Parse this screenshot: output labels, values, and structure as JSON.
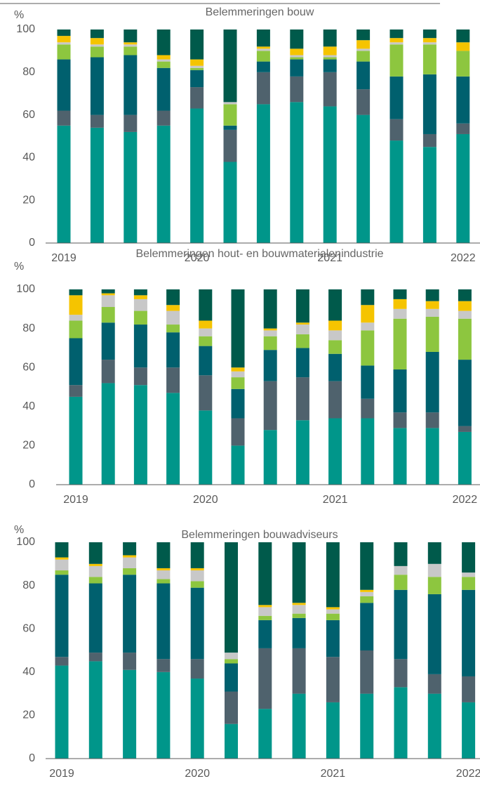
{
  "chart_data": [
    {
      "type": "bar",
      "stacked": true,
      "title": "Belemmeringen bouw",
      "y_label": "%",
      "categories": [
        "2019",
        null,
        null,
        null,
        "2020",
        null,
        null,
        null,
        "2021",
        null,
        null,
        null,
        "2022"
      ],
      "ylim": [
        0,
        100
      ],
      "yticks": [
        0,
        20,
        40,
        60,
        80,
        100
      ],
      "series": [
        {
          "color": "#00968a",
          "values": [
            55,
            54,
            52,
            55,
            63,
            38,
            65,
            66,
            64,
            60,
            48,
            45,
            51
          ]
        },
        {
          "color": "#4f626d",
          "values": [
            7,
            6,
            8,
            7,
            10,
            15,
            15,
            12,
            16,
            12,
            10,
            6,
            5
          ]
        },
        {
          "color": "#00606e",
          "values": [
            24,
            27,
            28,
            20,
            8,
            2,
            5,
            8,
            6,
            13,
            20,
            28,
            22
          ]
        },
        {
          "color": "#8dc63f",
          "values": [
            7,
            5,
            4,
            3,
            1,
            10,
            5,
            1,
            1,
            5,
            15,
            14,
            12
          ]
        },
        {
          "color": "#c8c8c8",
          "values": [
            1,
            1,
            1,
            1,
            1,
            1,
            1,
            1,
            1,
            1,
            1,
            1,
            0
          ]
        },
        {
          "color": "#f5c400",
          "values": [
            3,
            3,
            1,
            2,
            3,
            0,
            1,
            3,
            4,
            4,
            2,
            2,
            4
          ]
        },
        {
          "color": "#005a4b",
          "values": [
            3,
            4,
            6,
            12,
            14,
            34,
            8,
            9,
            8,
            5,
            4,
            4,
            6
          ]
        }
      ]
    },
    {
      "type": "bar",
      "stacked": true,
      "title": "Belemmeringen hout- en bouwmaterialenindustrie",
      "y_label": "%",
      "categories": [
        "2019",
        null,
        null,
        null,
        "2020",
        null,
        null,
        null,
        "2021",
        null,
        null,
        null,
        "2022"
      ],
      "ylim": [
        0,
        100
      ],
      "yticks": [
        0,
        20,
        40,
        60,
        80,
        100
      ],
      "series": [
        {
          "color": "#00968a",
          "values": [
            45,
            52,
            51,
            47,
            38,
            20,
            28,
            33,
            34,
            34,
            29,
            29,
            27
          ]
        },
        {
          "color": "#4f626d",
          "values": [
            6,
            12,
            9,
            13,
            18,
            14,
            25,
            22,
            19,
            10,
            8,
            8,
            3
          ]
        },
        {
          "color": "#00606e",
          "values": [
            24,
            19,
            22,
            18,
            15,
            15,
            16,
            15,
            14,
            17,
            22,
            31,
            34
          ]
        },
        {
          "color": "#8dc63f",
          "values": [
            9,
            8,
            7,
            4,
            5,
            6,
            7,
            7,
            7,
            18,
            26,
            18,
            21
          ]
        },
        {
          "color": "#c8c8c8",
          "values": [
            3,
            6,
            6,
            7,
            4,
            3,
            3,
            5,
            5,
            4,
            5,
            4,
            4
          ]
        },
        {
          "color": "#f5c400",
          "values": [
            10,
            1,
            2,
            3,
            4,
            2,
            1,
            1,
            5,
            9,
            5,
            4,
            5
          ]
        },
        {
          "color": "#005a4b",
          "values": [
            3,
            2,
            3,
            8,
            16,
            40,
            20,
            17,
            16,
            8,
            5,
            6,
            6
          ]
        }
      ]
    },
    {
      "type": "bar",
      "stacked": true,
      "title": "Belemmeringen bouwadviseurs",
      "y_label": "%",
      "categories": [
        "2019",
        null,
        null,
        null,
        "2020",
        null,
        null,
        null,
        "2021",
        null,
        null,
        null,
        "2022"
      ],
      "ylim": [
        0,
        100
      ],
      "yticks": [
        0,
        20,
        40,
        60,
        80,
        100
      ],
      "series": [
        {
          "color": "#00968a",
          "values": [
            43,
            45,
            41,
            40,
            37,
            16,
            23,
            30,
            26,
            30,
            33,
            30,
            26
          ]
        },
        {
          "color": "#4f626d",
          "values": [
            4,
            4,
            8,
            6,
            9,
            15,
            28,
            21,
            21,
            20,
            13,
            9,
            12
          ]
        },
        {
          "color": "#00606e",
          "values": [
            38,
            32,
            36,
            35,
            33,
            13,
            13,
            14,
            17,
            22,
            32,
            37,
            40
          ]
        },
        {
          "color": "#8dc63f",
          "values": [
            2,
            3,
            3,
            2,
            3,
            2,
            2,
            2,
            3,
            3,
            7,
            8,
            6
          ]
        },
        {
          "color": "#c8c8c8",
          "values": [
            5,
            5,
            5,
            4,
            5,
            3,
            4,
            4,
            2,
            2,
            4,
            6,
            2
          ]
        },
        {
          "color": "#f5c400",
          "values": [
            1,
            1,
            1,
            1,
            1,
            0,
            1,
            1,
            1,
            1,
            0,
            0,
            0
          ]
        },
        {
          "color": "#005a4b",
          "values": [
            7,
            10,
            6,
            12,
            12,
            51,
            29,
            28,
            30,
            22,
            11,
            10,
            14
          ]
        }
      ]
    }
  ]
}
